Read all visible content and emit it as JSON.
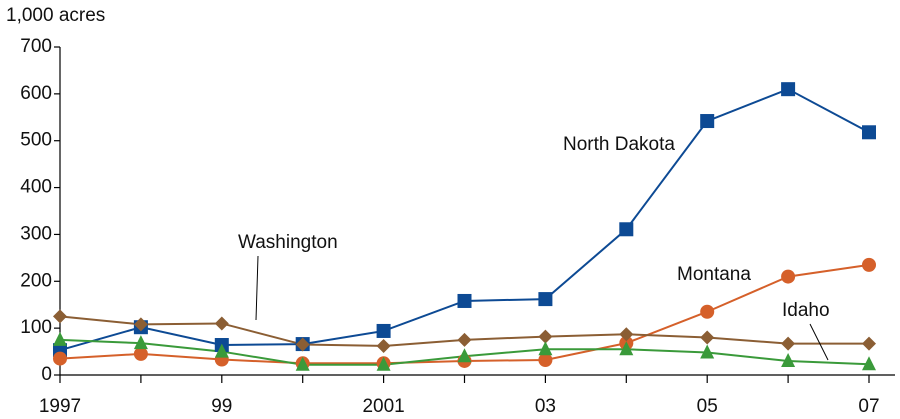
{
  "chart_data": {
    "type": "line",
    "y_label": "1,000 acres",
    "categories": [
      "1997",
      null,
      "99",
      null,
      "2001",
      null,
      "03",
      null,
      "05",
      null,
      "07"
    ],
    "ylim": [
      0,
      700
    ],
    "yticks": [
      0,
      100,
      200,
      300,
      400,
      500,
      600,
      700
    ],
    "series": [
      {
        "name": "North Dakota",
        "color": "#0d4a94",
        "marker": "square",
        "values": [
          53,
          102,
          64,
          66,
          94,
          158,
          162,
          311,
          542,
          610,
          518
        ]
      },
      {
        "name": "Montana",
        "color": "#d5602a",
        "marker": "circle",
        "values": [
          35,
          45,
          33,
          25,
          25,
          30,
          32,
          68,
          135,
          210,
          235
        ]
      },
      {
        "name": "Washington",
        "color": "#8b5e34",
        "marker": "diamond",
        "values": [
          125,
          108,
          110,
          65,
          62,
          75,
          82,
          87,
          80,
          67,
          67
        ]
      },
      {
        "name": "Idaho",
        "color": "#3a9a3a",
        "marker": "triangle",
        "values": [
          75,
          68,
          50,
          22,
          22,
          40,
          55,
          55,
          48,
          30,
          23
        ]
      }
    ]
  }
}
